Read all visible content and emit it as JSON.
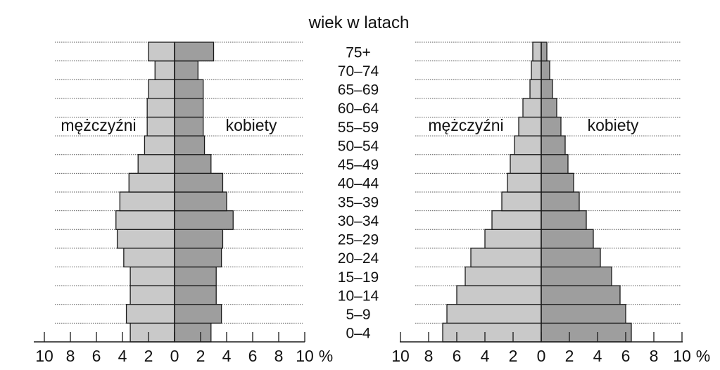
{
  "figure": {
    "title": "wiek w latach"
  },
  "chart_data": {
    "type": "bar",
    "orientation": "horizontal",
    "age_groups": [
      "0–4",
      "5–9",
      "10–14",
      "15–19",
      "20–24",
      "25–29",
      "30–34",
      "35–39",
      "40–44",
      "45–49",
      "50–54",
      "55–59",
      "60–64",
      "65–69",
      "70–74",
      "75+"
    ],
    "xlim": [
      -10,
      10
    ],
    "x_ticks": [
      {
        "value": -10,
        "label": "10"
      },
      {
        "value": -8,
        "label": "8"
      },
      {
        "value": -6,
        "label": "6"
      },
      {
        "value": -4,
        "label": "4"
      },
      {
        "value": -2,
        "label": "2"
      },
      {
        "value": 0,
        "label": "0"
      },
      {
        "value": 2,
        "label": "2"
      },
      {
        "value": 4,
        "label": "4"
      },
      {
        "value": 6,
        "label": "6"
      },
      {
        "value": 8,
        "label": "8"
      },
      {
        "value": 10,
        "label": "10"
      }
    ],
    "x_unit": "%",
    "grid": "horizontal-dotted",
    "colors": {
      "men": "#c9c9c9",
      "women": "#9e9e9e",
      "stroke": "#1a1a1a",
      "grid": "#555555"
    },
    "pyramids": [
      {
        "label_left": "mężczyźni",
        "label_right": "kobiety",
        "men": [
          3.4,
          3.7,
          3.4,
          3.4,
          3.9,
          4.4,
          4.5,
          4.2,
          3.5,
          2.8,
          2.3,
          2.1,
          2.1,
          2.0,
          1.5,
          2.0
        ],
        "women": [
          2.8,
          3.6,
          3.2,
          3.2,
          3.6,
          3.7,
          4.5,
          4.0,
          3.7,
          2.8,
          2.3,
          2.2,
          2.2,
          2.2,
          1.8,
          3.0
        ]
      },
      {
        "label_left": "mężczyźni",
        "label_right": "kobiety",
        "men": [
          7.0,
          6.7,
          6.0,
          5.4,
          5.0,
          4.0,
          3.5,
          2.8,
          2.4,
          2.2,
          1.9,
          1.6,
          1.3,
          0.8,
          0.7,
          0.6
        ],
        "women": [
          6.4,
          6.0,
          5.6,
          5.0,
          4.2,
          3.7,
          3.2,
          2.7,
          2.3,
          1.9,
          1.7,
          1.4,
          1.1,
          0.8,
          0.6,
          0.4
        ]
      }
    ]
  }
}
